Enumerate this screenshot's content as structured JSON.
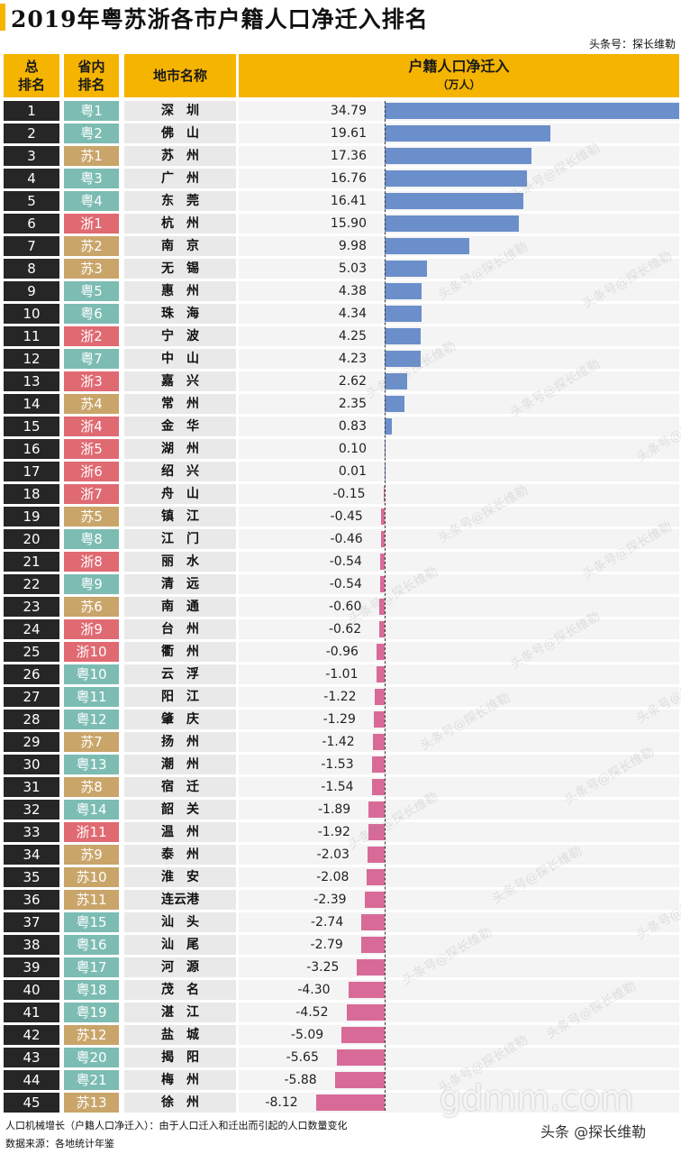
{
  "title": "2019年粤苏浙各市户籍人口净迁入排名",
  "credit": "头条号：探长维勒",
  "headers": {
    "rank": [
      "总",
      "排名"
    ],
    "prov": [
      "省内",
      "排名"
    ],
    "city": "地市名称",
    "metric": "户籍人口净迁入",
    "unit": "（万人）"
  },
  "chart_data": {
    "type": "bar",
    "orientation": "horizontal",
    "title": "2019年粤苏浙各市户籍人口净迁入排名",
    "unit": "万人",
    "colors": {
      "positive": "#6b8fcb",
      "negative": "#d86a98"
    },
    "rows": [
      {
        "rank": "1",
        "prov": "粤1",
        "p": "yue",
        "city": "深　圳",
        "value": 34.79
      },
      {
        "rank": "2",
        "prov": "粤2",
        "p": "yue",
        "city": "佛　山",
        "value": 19.61
      },
      {
        "rank": "3",
        "prov": "苏1",
        "p": "su",
        "city": "苏　州",
        "value": 17.36
      },
      {
        "rank": "4",
        "prov": "粤3",
        "p": "yue",
        "city": "广　州",
        "value": 16.76
      },
      {
        "rank": "5",
        "prov": "粤4",
        "p": "yue",
        "city": "东　莞",
        "value": 16.41
      },
      {
        "rank": "6",
        "prov": "浙1",
        "p": "zhe",
        "city": "杭　州",
        "value": 15.9
      },
      {
        "rank": "7",
        "prov": "苏2",
        "p": "su",
        "city": "南　京",
        "value": 9.98
      },
      {
        "rank": "8",
        "prov": "苏3",
        "p": "su",
        "city": "无　锡",
        "value": 5.03
      },
      {
        "rank": "9",
        "prov": "粤5",
        "p": "yue",
        "city": "惠　州",
        "value": 4.38
      },
      {
        "rank": "10",
        "prov": "粤6",
        "p": "yue",
        "city": "珠　海",
        "value": 4.34
      },
      {
        "rank": "11",
        "prov": "浙2",
        "p": "zhe",
        "city": "宁　波",
        "value": 4.25
      },
      {
        "rank": "12",
        "prov": "粤7",
        "p": "yue",
        "city": "中　山",
        "value": 4.23
      },
      {
        "rank": "13",
        "prov": "浙3",
        "p": "zhe",
        "city": "嘉　兴",
        "value": 2.62
      },
      {
        "rank": "14",
        "prov": "苏4",
        "p": "su",
        "city": "常　州",
        "value": 2.35
      },
      {
        "rank": "15",
        "prov": "浙4",
        "p": "zhe",
        "city": "金　华",
        "value": 0.83
      },
      {
        "rank": "16",
        "prov": "浙5",
        "p": "zhe",
        "city": "湖　州",
        "value": 0.1
      },
      {
        "rank": "17",
        "prov": "浙6",
        "p": "zhe",
        "city": "绍　兴",
        "value": 0.01
      },
      {
        "rank": "18",
        "prov": "浙7",
        "p": "zhe",
        "city": "舟　山",
        "value": -0.15
      },
      {
        "rank": "19",
        "prov": "苏5",
        "p": "su",
        "city": "镇　江",
        "value": -0.45
      },
      {
        "rank": "20",
        "prov": "粤8",
        "p": "yue",
        "city": "江　门",
        "value": -0.46
      },
      {
        "rank": "21",
        "prov": "浙8",
        "p": "zhe",
        "city": "丽　水",
        "value": -0.54
      },
      {
        "rank": "22",
        "prov": "粤9",
        "p": "yue",
        "city": "清　远",
        "value": -0.54
      },
      {
        "rank": "23",
        "prov": "苏6",
        "p": "su",
        "city": "南　通",
        "value": -0.6
      },
      {
        "rank": "24",
        "prov": "浙9",
        "p": "zhe",
        "city": "台　州",
        "value": -0.62
      },
      {
        "rank": "25",
        "prov": "浙10",
        "p": "zhe",
        "city": "衢　州",
        "value": -0.96
      },
      {
        "rank": "26",
        "prov": "粤10",
        "p": "yue",
        "city": "云　浮",
        "value": -1.01
      },
      {
        "rank": "27",
        "prov": "粤11",
        "p": "yue",
        "city": "阳　江",
        "value": -1.22
      },
      {
        "rank": "28",
        "prov": "粤12",
        "p": "yue",
        "city": "肇　庆",
        "value": -1.29
      },
      {
        "rank": "29",
        "prov": "苏7",
        "p": "su",
        "city": "扬　州",
        "value": -1.42
      },
      {
        "rank": "30",
        "prov": "粤13",
        "p": "yue",
        "city": "潮　州",
        "value": -1.53
      },
      {
        "rank": "31",
        "prov": "苏8",
        "p": "su",
        "city": "宿　迁",
        "value": -1.54
      },
      {
        "rank": "32",
        "prov": "粤14",
        "p": "yue",
        "city": "韶　关",
        "value": -1.89
      },
      {
        "rank": "33",
        "prov": "浙11",
        "p": "zhe",
        "city": "温　州",
        "value": -1.92
      },
      {
        "rank": "34",
        "prov": "苏9",
        "p": "su",
        "city": "泰　州",
        "value": -2.03
      },
      {
        "rank": "35",
        "prov": "苏10",
        "p": "su",
        "city": "淮　安",
        "value": -2.08
      },
      {
        "rank": "36",
        "prov": "苏11",
        "p": "su",
        "city": "连云港",
        "value": -2.39
      },
      {
        "rank": "37",
        "prov": "粤15",
        "p": "yue",
        "city": "汕　头",
        "value": -2.74
      },
      {
        "rank": "38",
        "prov": "粤16",
        "p": "yue",
        "city": "汕　尾",
        "value": -2.79
      },
      {
        "rank": "39",
        "prov": "粤17",
        "p": "yue",
        "city": "河　源",
        "value": -3.25
      },
      {
        "rank": "40",
        "prov": "粤18",
        "p": "yue",
        "city": "茂　名",
        "value": -4.3
      },
      {
        "rank": "41",
        "prov": "粤19",
        "p": "yue",
        "city": "湛　江",
        "value": -4.52
      },
      {
        "rank": "42",
        "prov": "苏12",
        "p": "su",
        "city": "盐　城",
        "value": -5.09
      },
      {
        "rank": "43",
        "prov": "粤20",
        "p": "yue",
        "city": "揭　阳",
        "value": -5.65
      },
      {
        "rank": "44",
        "prov": "粤21",
        "p": "yue",
        "city": "梅　州",
        "value": -5.88
      },
      {
        "rank": "45",
        "prov": "苏13",
        "p": "su",
        "city": "徐　州",
        "value": -8.12
      }
    ]
  },
  "watermark": "头条号@探长维勒",
  "site_watermark": "gdmm.com",
  "author_watermark": "头条 @探长维勒",
  "footnotes": [
    "人口机械增长（户籍人口净迁入）：由于人口迁入和迁出而引起的人口数量变化",
    "数据来源：各地统计年鉴"
  ]
}
